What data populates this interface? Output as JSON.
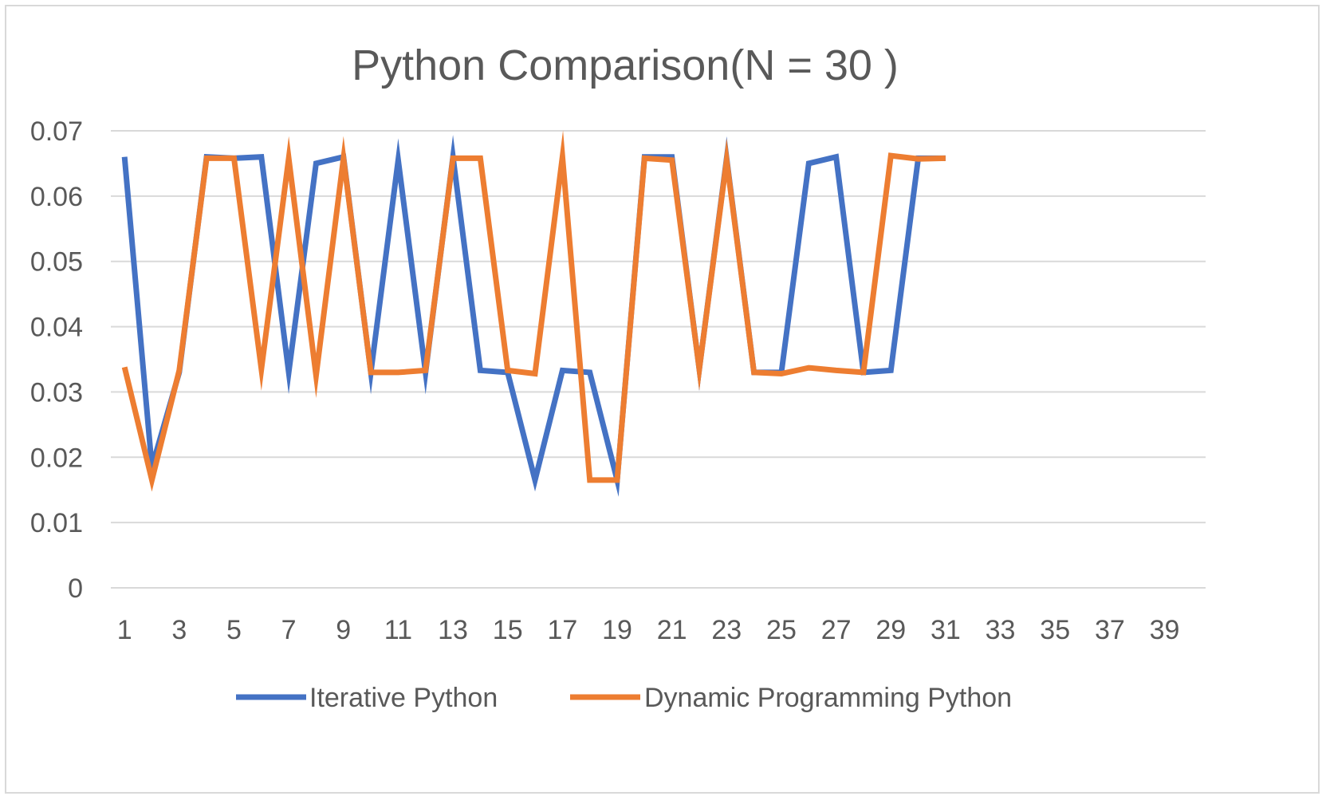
{
  "chart_data": {
    "type": "line",
    "title": "Python Comparison(N = 30 )",
    "xlabel": "",
    "ylabel": "",
    "x_tick_labels": [
      "1",
      "3",
      "5",
      "7",
      "9",
      "11",
      "13",
      "15",
      "17",
      "19",
      "21",
      "23",
      "25",
      "27",
      "29",
      "31",
      "33",
      "35",
      "37",
      "39"
    ],
    "y_tick_labels": [
      "0",
      "0.01",
      "0.02",
      "0.03",
      "0.04",
      "0.05",
      "0.06",
      "0.07"
    ],
    "ylim": [
      0,
      0.07
    ],
    "xlim": [
      1,
      40
    ],
    "grid": "horizontal",
    "legend_position": "bottom",
    "series": [
      {
        "name": "Iterative Python",
        "color": "#4472C4",
        "x": [
          1,
          2,
          3,
          4,
          5,
          6,
          7,
          8,
          9,
          10,
          11,
          12,
          13,
          14,
          15,
          16,
          17,
          18,
          19,
          20,
          21,
          22,
          23,
          24,
          25,
          26,
          27,
          28,
          29,
          30,
          31
        ],
        "values": [
          0.066,
          0.0185,
          0.033,
          0.066,
          0.0658,
          0.066,
          0.033,
          0.065,
          0.066,
          0.033,
          0.0655,
          0.033,
          0.066,
          0.0333,
          0.033,
          0.0165,
          0.0333,
          0.033,
          0.0165,
          0.066,
          0.066,
          0.0335,
          0.0658,
          0.033,
          0.033,
          0.065,
          0.066,
          0.033,
          0.0333,
          0.0658,
          0.0658
        ]
      },
      {
        "name": "Dynamic Programming Python",
        "color": "#ED7D31",
        "x": [
          1,
          2,
          3,
          4,
          5,
          6,
          7,
          8,
          9,
          10,
          11,
          12,
          13,
          14,
          15,
          16,
          17,
          18,
          19,
          20,
          21,
          22,
          23,
          24,
          25,
          26,
          27,
          28,
          29,
          30,
          31
        ],
        "values": [
          0.0338,
          0.0165,
          0.0333,
          0.0658,
          0.0658,
          0.0335,
          0.0658,
          0.0325,
          0.0658,
          0.033,
          0.033,
          0.0333,
          0.0658,
          0.0658,
          0.0333,
          0.0328,
          0.066,
          0.0165,
          0.0165,
          0.0658,
          0.0655,
          0.0335,
          0.0655,
          0.033,
          0.0328,
          0.0337,
          0.0333,
          0.033,
          0.0662,
          0.0657,
          0.0658
        ]
      }
    ]
  }
}
